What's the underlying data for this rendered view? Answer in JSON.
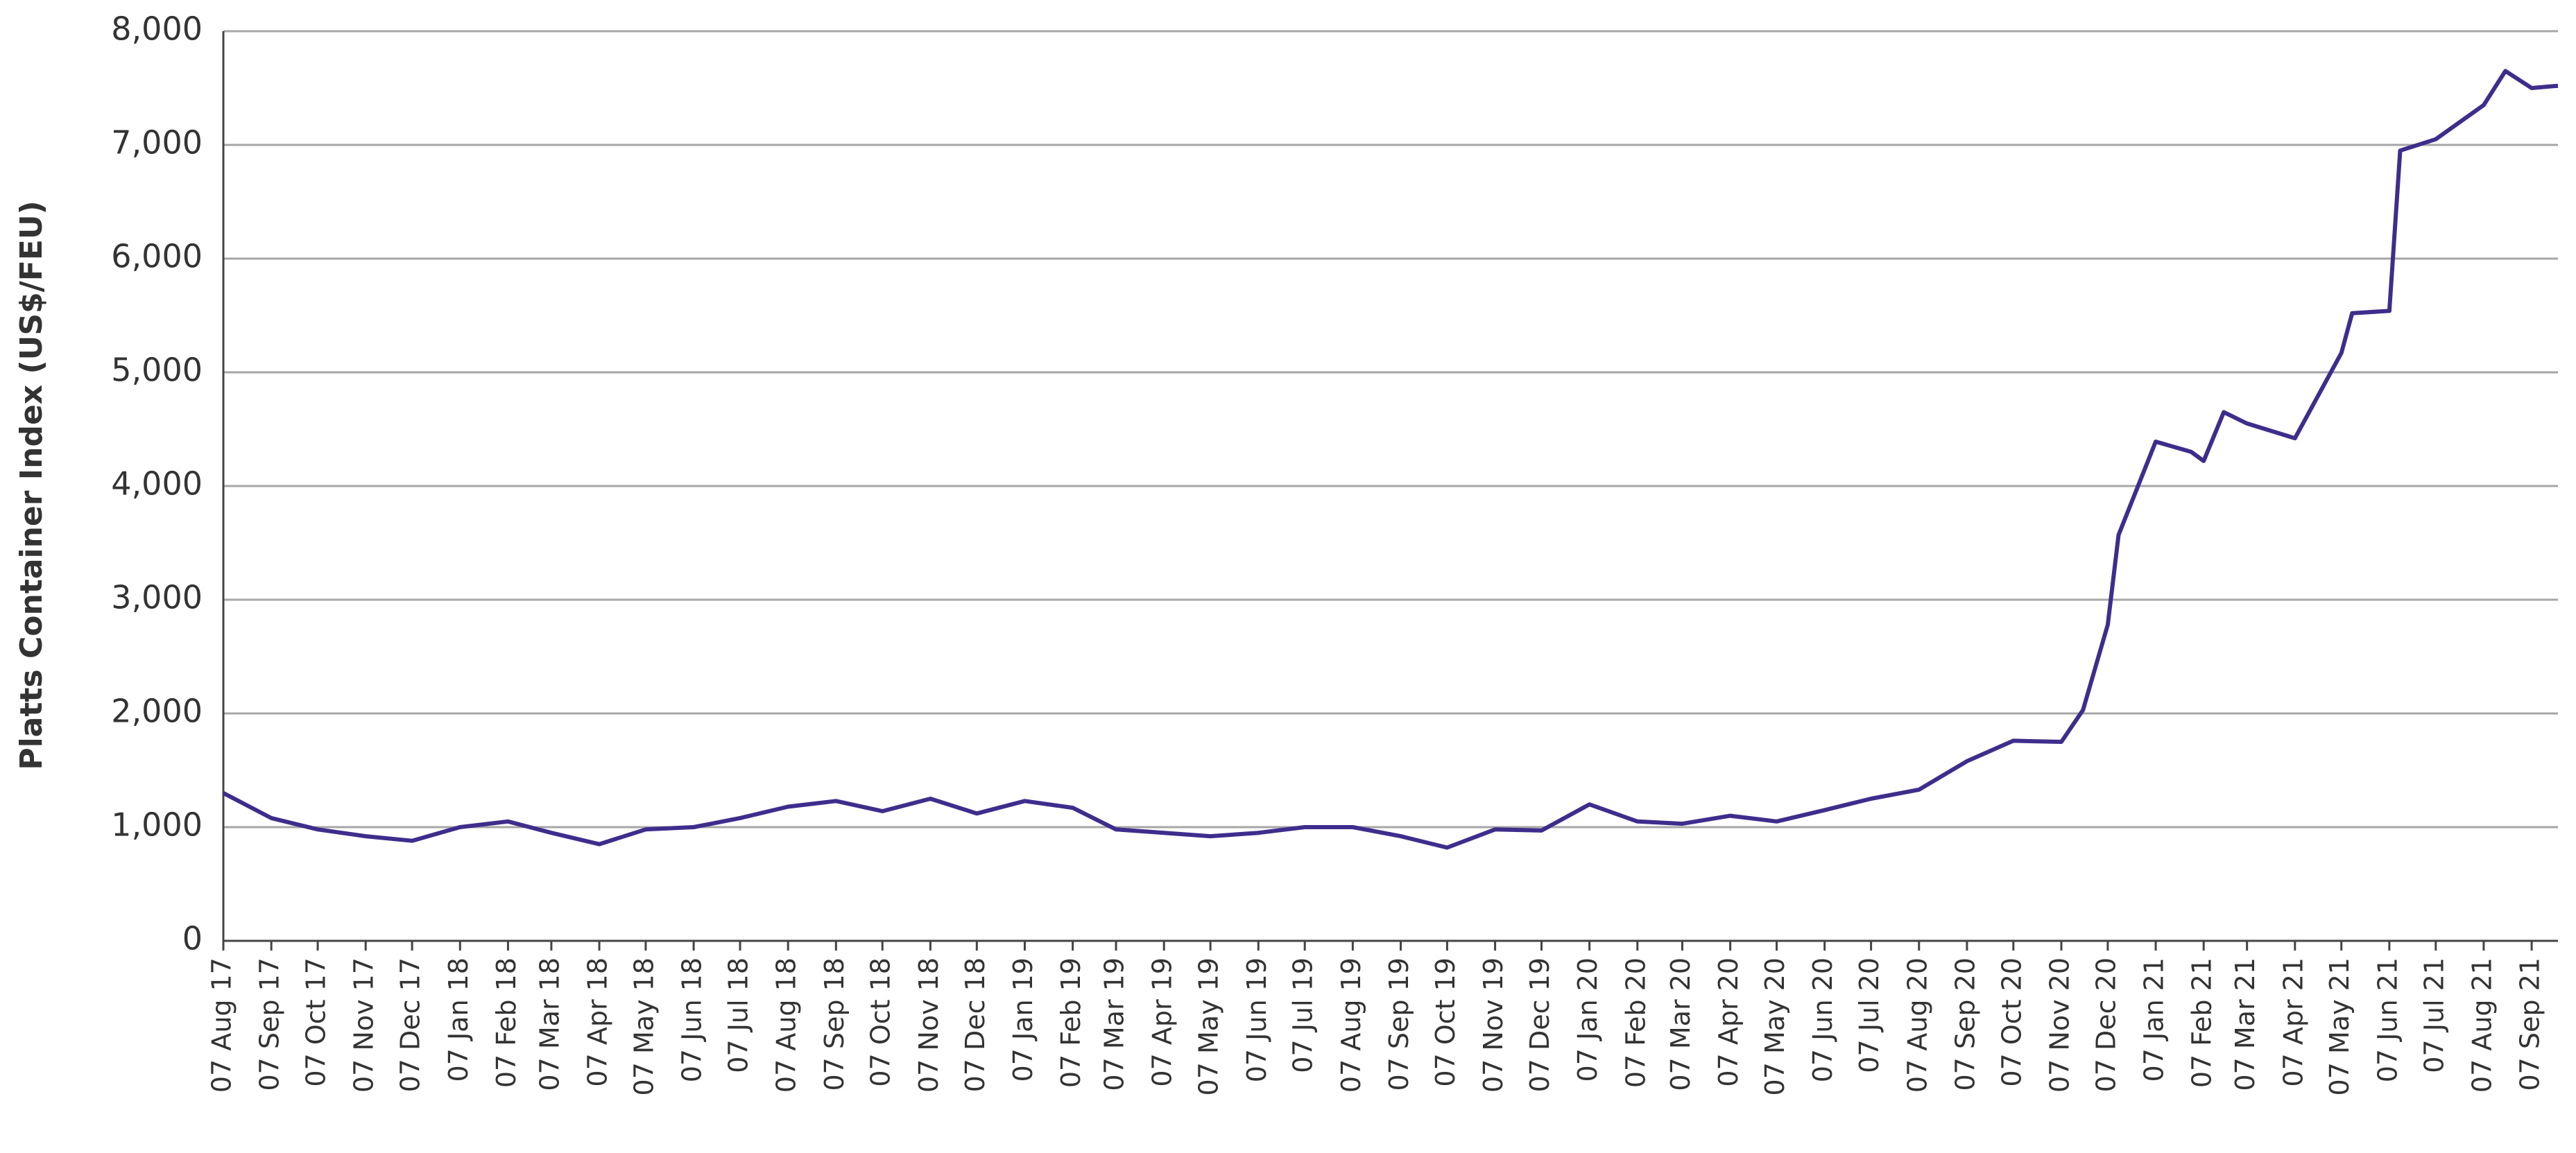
{
  "chart_data": {
    "type": "line",
    "ylabel": "Platts Container Index (US$/FEU)",
    "x": [
      "2017-08-07",
      "2017-09-07",
      "2017-10-07",
      "2017-11-07",
      "2017-12-07",
      "2018-01-07",
      "2018-02-07",
      "2018-03-07",
      "2018-04-07",
      "2018-05-07",
      "2018-06-07",
      "2018-07-07",
      "2018-08-07",
      "2018-09-07",
      "2018-10-07",
      "2018-11-07",
      "2018-12-07",
      "2019-01-07",
      "2019-02-07",
      "2019-03-07",
      "2019-04-07",
      "2019-05-07",
      "2019-06-07",
      "2019-07-07",
      "2019-08-07",
      "2019-09-07",
      "2019-10-07",
      "2019-11-07",
      "2019-12-07",
      "2020-01-07",
      "2020-02-07",
      "2020-03-07",
      "2020-04-07",
      "2020-05-07",
      "2020-06-07",
      "2020-07-07",
      "2020-08-07",
      "2020-09-07",
      "2020-10-07",
      "2020-11-07",
      "2020-11-21",
      "2020-12-07",
      "2020-12-14",
      "2021-01-07",
      "2021-01-30",
      "2021-02-07",
      "2021-02-20",
      "2021-03-07",
      "2021-04-07",
      "2021-05-07",
      "2021-05-14",
      "2021-06-07",
      "2021-06-14",
      "2021-07-07",
      "2021-08-07",
      "2021-08-21",
      "2021-09-07",
      "2021-09-24"
    ],
    "series": [
      {
        "name": "Platts Container Index",
        "color": "#3f2d8c",
        "values": [
          1300,
          1080,
          980,
          920,
          880,
          1000,
          1050,
          950,
          850,
          980,
          1000,
          1080,
          1180,
          1230,
          1140,
          1250,
          1120,
          1230,
          1170,
          980,
          950,
          920,
          950,
          1000,
          1000,
          920,
          820,
          980,
          970,
          1200,
          1050,
          1030,
          1100,
          1050,
          1150,
          1250,
          1330,
          1580,
          1760,
          1750,
          2030,
          2780,
          3570,
          4390,
          4300,
          4220,
          4650,
          4550,
          4420,
          5170,
          5520,
          5540,
          6950,
          7050,
          7350,
          7650,
          7500,
          7520
        ]
      }
    ],
    "xlim": [
      "2017-08-07",
      "2021-09-24"
    ],
    "xticks": [
      {
        "value": "2017-08-07",
        "label": "07 Aug 17"
      },
      {
        "value": "2017-09-07",
        "label": "07 Sep 17"
      },
      {
        "value": "2017-10-07",
        "label": "07 Oct 17"
      },
      {
        "value": "2017-11-07",
        "label": "07 Nov 17"
      },
      {
        "value": "2017-12-07",
        "label": "07 Dec 17"
      },
      {
        "value": "2018-01-07",
        "label": "07 Jan 18"
      },
      {
        "value": "2018-02-07",
        "label": "07 Feb 18"
      },
      {
        "value": "2018-03-07",
        "label": "07 Mar 18"
      },
      {
        "value": "2018-04-07",
        "label": "07 Apr 18"
      },
      {
        "value": "2018-05-07",
        "label": "07 May 18"
      },
      {
        "value": "2018-06-07",
        "label": "07 Jun 18"
      },
      {
        "value": "2018-07-07",
        "label": "07 Jul 18"
      },
      {
        "value": "2018-08-07",
        "label": "07 Aug 18"
      },
      {
        "value": "2018-09-07",
        "label": "07 Sep 18"
      },
      {
        "value": "2018-10-07",
        "label": "07 Oct 18"
      },
      {
        "value": "2018-11-07",
        "label": "07 Nov 18"
      },
      {
        "value": "2018-12-07",
        "label": "07 Dec 18"
      },
      {
        "value": "2019-01-07",
        "label": "07 Jan 19"
      },
      {
        "value": "2019-02-07",
        "label": "07 Feb 19"
      },
      {
        "value": "2019-03-07",
        "label": "07 Mar 19"
      },
      {
        "value": "2019-04-07",
        "label": "07 Apr 19"
      },
      {
        "value": "2019-05-07",
        "label": "07 May 19"
      },
      {
        "value": "2019-06-07",
        "label": "07 Jun 19"
      },
      {
        "value": "2019-07-07",
        "label": "07 Jul 19"
      },
      {
        "value": "2019-08-07",
        "label": "07 Aug 19"
      },
      {
        "value": "2019-09-07",
        "label": "07 Sep 19"
      },
      {
        "value": "2019-10-07",
        "label": "07 Oct 19"
      },
      {
        "value": "2019-11-07",
        "label": "07 Nov 19"
      },
      {
        "value": "2019-12-07",
        "label": "07 Dec 19"
      },
      {
        "value": "2020-01-07",
        "label": "07 Jan 20"
      },
      {
        "value": "2020-02-07",
        "label": "07 Feb 20"
      },
      {
        "value": "2020-03-07",
        "label": "07 Mar 20"
      },
      {
        "value": "2020-04-07",
        "label": "07 Apr 20"
      },
      {
        "value": "2020-05-07",
        "label": "07 May 20"
      },
      {
        "value": "2020-06-07",
        "label": "07 Jun 20"
      },
      {
        "value": "2020-07-07",
        "label": "07 Jul 20"
      },
      {
        "value": "2020-08-07",
        "label": "07 Aug 20"
      },
      {
        "value": "2020-09-07",
        "label": "07 Sep 20"
      },
      {
        "value": "2020-10-07",
        "label": "07 Oct 20"
      },
      {
        "value": "2020-11-07",
        "label": "07 Nov 20"
      },
      {
        "value": "2020-12-07",
        "label": "07 Dec 20"
      },
      {
        "value": "2021-01-07",
        "label": "07 Jan 21"
      },
      {
        "value": "2021-02-07",
        "label": "07 Feb 21"
      },
      {
        "value": "2021-03-07",
        "label": "07 Mar 21"
      },
      {
        "value": "2021-04-07",
        "label": "07 Apr 21"
      },
      {
        "value": "2021-05-07",
        "label": "07 May 21"
      },
      {
        "value": "2021-06-07",
        "label": "07 Jun 21"
      },
      {
        "value": "2021-07-07",
        "label": "07 Jul 21"
      },
      {
        "value": "2021-08-07",
        "label": "07 Aug 21"
      },
      {
        "value": "2021-09-07",
        "label": "07 Sep 21"
      }
    ],
    "ylim": [
      0,
      8000
    ],
    "yticks": [
      0,
      {
        "value": 1000,
        "label": "1,000"
      },
      {
        "value": 2000,
        "label": "2,000"
      },
      {
        "value": 3000,
        "label": "3,000"
      },
      {
        "value": 4000,
        "label": "4,000"
      },
      {
        "value": 5000,
        "label": "5,000"
      },
      {
        "value": 6000,
        "label": "6,000"
      },
      {
        "value": 7000,
        "label": "7,000"
      },
      {
        "value": 8000,
        "label": "8,000"
      }
    ],
    "grid": true
  }
}
